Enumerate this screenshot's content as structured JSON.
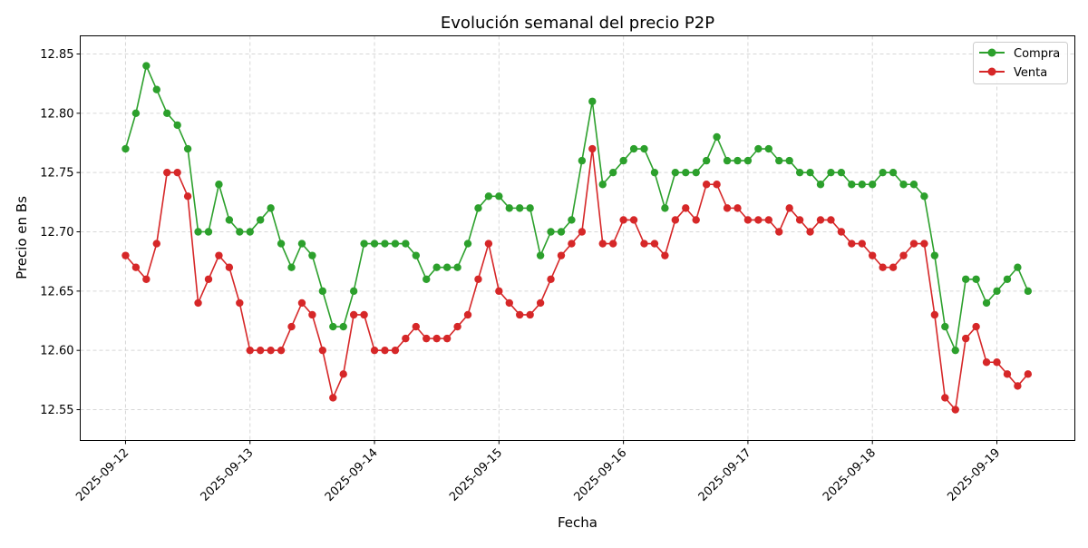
{
  "chart_data": {
    "type": "line",
    "title": "Evolución semanal del precio P2P",
    "xlabel": "Fecha",
    "ylabel": "Precio en Bs",
    "ylim": [
      12.524,
      12.8653
    ],
    "xlim": [
      "2025-09-11T15:16",
      "2025-09-19T15:02"
    ],
    "yticks": [
      "12.55",
      "12.60",
      "12.65",
      "12.70",
      "12.75",
      "12.80",
      "12.85"
    ],
    "xticks": [
      "2025-09-12",
      "2025-09-13",
      "2025-09-14",
      "2025-09-15",
      "2025-09-16",
      "2025-09-17",
      "2025-09-18",
      "2025-09-19"
    ],
    "grid": true,
    "legend_position": "upper-right",
    "x": [
      "2025-09-12T00:00",
      "2025-09-12T02:00",
      "2025-09-12T04:00",
      "2025-09-12T06:00",
      "2025-09-12T08:00",
      "2025-09-12T10:00",
      "2025-09-12T12:00",
      "2025-09-12T14:00",
      "2025-09-12T16:00",
      "2025-09-12T18:00",
      "2025-09-12T20:00",
      "2025-09-12T22:00",
      "2025-09-13T00:00",
      "2025-09-13T02:00",
      "2025-09-13T04:00",
      "2025-09-13T06:00",
      "2025-09-13T08:00",
      "2025-09-13T10:00",
      "2025-09-13T12:00",
      "2025-09-13T14:00",
      "2025-09-13T16:00",
      "2025-09-13T18:00",
      "2025-09-13T20:00",
      "2025-09-13T22:00",
      "2025-09-14T00:00",
      "2025-09-14T02:00",
      "2025-09-14T04:00",
      "2025-09-14T06:00",
      "2025-09-14T08:00",
      "2025-09-14T10:00",
      "2025-09-14T12:00",
      "2025-09-14T14:00",
      "2025-09-14T16:00",
      "2025-09-14T18:00",
      "2025-09-14T20:00",
      "2025-09-14T22:00",
      "2025-09-15T00:00",
      "2025-09-15T02:00",
      "2025-09-15T04:00",
      "2025-09-15T06:00",
      "2025-09-15T08:00",
      "2025-09-15T10:00",
      "2025-09-15T12:00",
      "2025-09-15T14:00",
      "2025-09-15T16:00",
      "2025-09-15T18:00",
      "2025-09-15T20:00",
      "2025-09-15T22:00",
      "2025-09-16T00:00",
      "2025-09-16T02:00",
      "2025-09-16T04:00",
      "2025-09-16T06:00",
      "2025-09-16T08:00",
      "2025-09-16T10:00",
      "2025-09-16T12:00",
      "2025-09-16T14:00",
      "2025-09-16T16:00",
      "2025-09-16T18:00",
      "2025-09-16T20:00",
      "2025-09-16T22:00",
      "2025-09-17T00:00",
      "2025-09-17T02:00",
      "2025-09-17T04:00",
      "2025-09-17T06:00",
      "2025-09-17T08:00",
      "2025-09-17T10:00",
      "2025-09-17T12:00",
      "2025-09-17T14:00",
      "2025-09-17T16:00",
      "2025-09-17T18:00",
      "2025-09-17T20:00",
      "2025-09-17T22:00",
      "2025-09-18T00:00",
      "2025-09-18T02:00",
      "2025-09-18T04:00",
      "2025-09-18T06:00",
      "2025-09-18T08:00",
      "2025-09-18T10:00",
      "2025-09-18T12:00",
      "2025-09-18T14:00",
      "2025-09-18T16:00",
      "2025-09-18T18:00",
      "2025-09-18T20:00",
      "2025-09-18T22:00",
      "2025-09-19T00:00",
      "2025-09-19T02:00",
      "2025-09-19T04:00",
      "2025-09-19T06:00"
    ],
    "series": [
      {
        "name": "Compra",
        "color": "#2ca02c",
        "marker": "circle",
        "values": [
          12.77,
          12.8,
          12.84,
          12.82,
          12.8,
          12.79,
          12.77,
          12.7,
          12.7,
          12.74,
          12.71,
          12.7,
          12.7,
          12.71,
          12.72,
          12.69,
          12.67,
          12.69,
          12.68,
          12.65,
          12.62,
          12.62,
          12.65,
          12.69,
          12.69,
          12.69,
          12.69,
          12.69,
          12.68,
          12.66,
          12.67,
          12.67,
          12.67,
          12.69,
          12.72,
          12.73,
          12.73,
          12.72,
          12.72,
          12.72,
          12.68,
          12.7,
          12.7,
          12.71,
          12.76,
          12.81,
          12.74,
          12.75,
          12.76,
          12.77,
          12.77,
          12.75,
          12.72,
          12.75,
          12.75,
          12.75,
          12.76,
          12.78,
          12.76,
          12.76,
          12.76,
          12.77,
          12.77,
          12.76,
          12.76,
          12.75,
          12.75,
          12.74,
          12.75,
          12.75,
          12.74,
          12.74,
          12.74,
          12.75,
          12.75,
          12.74,
          12.74,
          12.73,
          12.68,
          12.62,
          12.6,
          12.66,
          12.66,
          12.64,
          12.65,
          12.66,
          12.67,
          12.65
        ]
      },
      {
        "name": "Venta",
        "color": "#d62728",
        "marker": "circle",
        "values": [
          12.68,
          12.67,
          12.66,
          12.69,
          12.75,
          12.75,
          12.73,
          12.64,
          12.66,
          12.68,
          12.67,
          12.64,
          12.6,
          12.6,
          12.6,
          12.6,
          12.62,
          12.64,
          12.63,
          12.6,
          12.56,
          12.58,
          12.63,
          12.63,
          12.6,
          12.6,
          12.6,
          12.61,
          12.62,
          12.61,
          12.61,
          12.61,
          12.62,
          12.63,
          12.66,
          12.69,
          12.65,
          12.64,
          12.63,
          12.63,
          12.64,
          12.66,
          12.68,
          12.69,
          12.7,
          12.77,
          12.69,
          12.69,
          12.71,
          12.71,
          12.69,
          12.69,
          12.68,
          12.71,
          12.72,
          12.71,
          12.74,
          12.74,
          12.72,
          12.72,
          12.71,
          12.71,
          12.71,
          12.7,
          12.72,
          12.71,
          12.7,
          12.71,
          12.71,
          12.7,
          12.69,
          12.69,
          12.68,
          12.67,
          12.67,
          12.68,
          12.69,
          12.69,
          12.63,
          12.56,
          12.55,
          12.61,
          12.62,
          12.59,
          12.59,
          12.58,
          12.57,
          12.58
        ]
      }
    ]
  }
}
